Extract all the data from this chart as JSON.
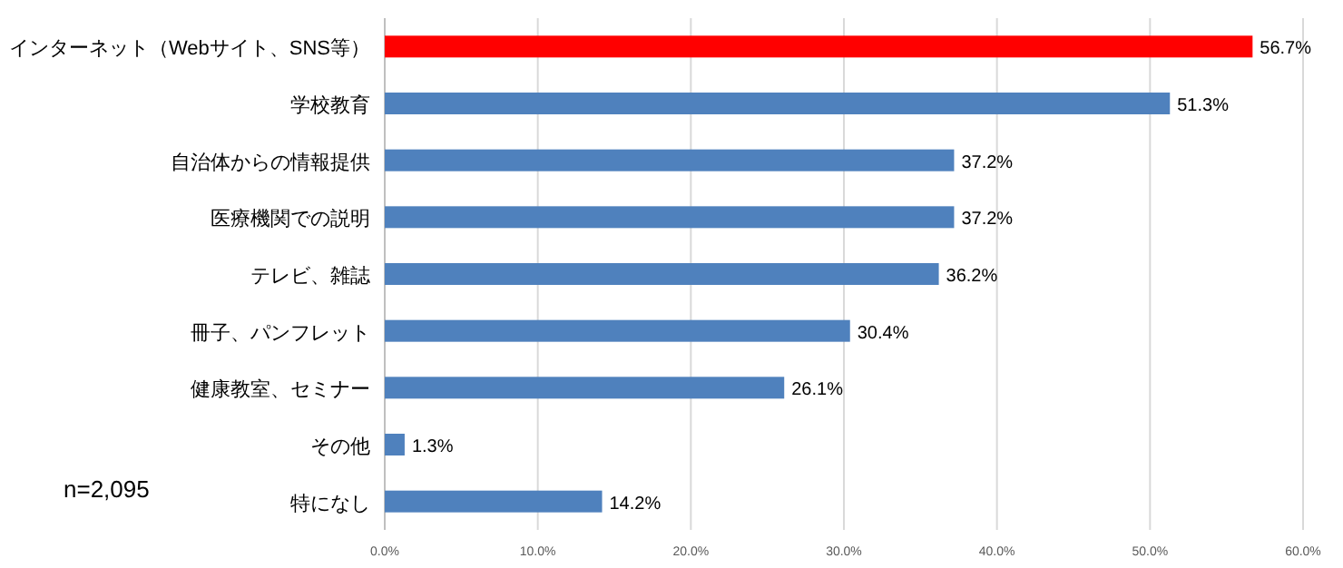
{
  "chart_data": {
    "type": "bar",
    "orientation": "horizontal",
    "categories": [
      "インターネット（Webサイト、SNS等）",
      "学校教育",
      "自治体からの情報提供",
      "医療機関での説明",
      "テレビ、雑誌",
      "冊子、パンフレット",
      "健康教室、セミナー",
      "その他",
      "特になし"
    ],
    "values": [
      56.7,
      51.3,
      37.2,
      37.2,
      36.2,
      30.4,
      26.1,
      1.3,
      14.2
    ],
    "value_labels": [
      "56.7%",
      "51.3%",
      "37.2%",
      "37.2%",
      "36.2%",
      "30.4%",
      "26.1%",
      "1.3%",
      "14.2%"
    ],
    "colors": [
      "#ff0000",
      "#4f81bd",
      "#4f81bd",
      "#4f81bd",
      "#4f81bd",
      "#4f81bd",
      "#4f81bd",
      "#4f81bd",
      "#4f81bd"
    ],
    "xlim": [
      0,
      60
    ],
    "xticks": [
      {
        "value": 0,
        "label": "0.0%"
      },
      {
        "value": 10,
        "label": "10.0%"
      },
      {
        "value": 20,
        "label": "20.0%"
      },
      {
        "value": 30,
        "label": "30.0%"
      },
      {
        "value": 40,
        "label": "40.0%"
      },
      {
        "value": 50,
        "label": "50.0%"
      },
      {
        "value": 60,
        "label": "60.0%"
      }
    ],
    "grid": "x",
    "annotations": [
      "n=2,095"
    ]
  }
}
